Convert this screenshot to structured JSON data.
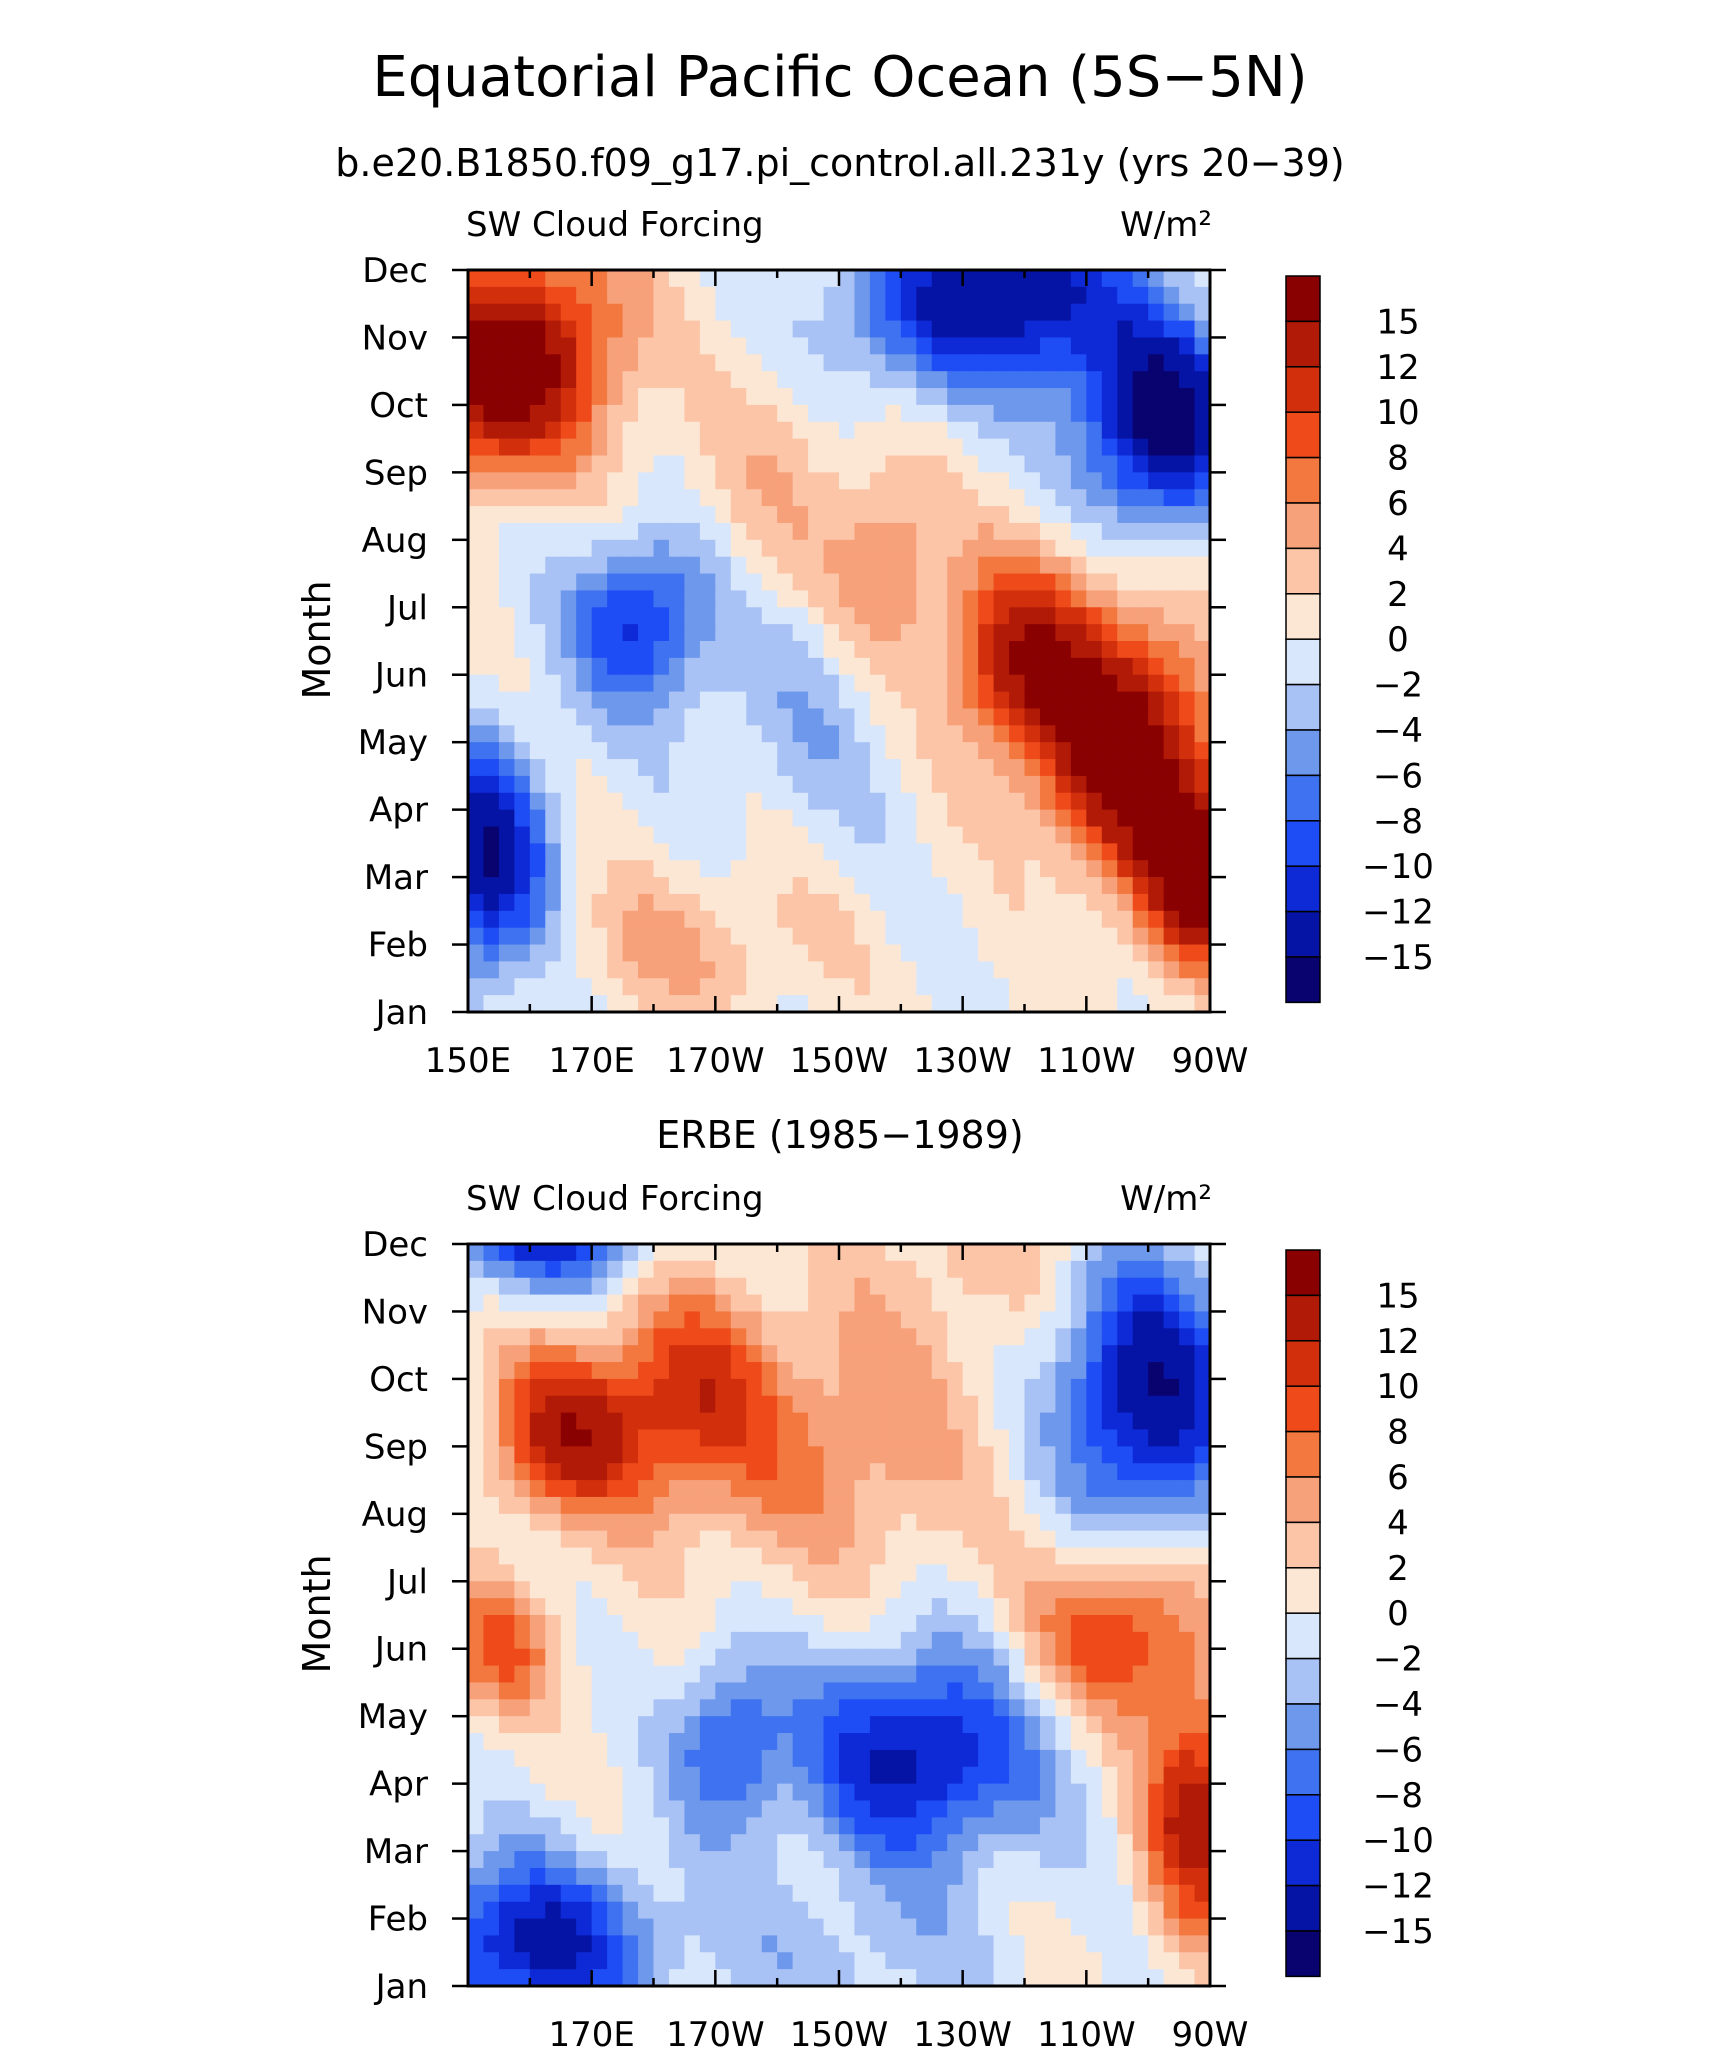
{
  "figure": {
    "title": "Equatorial Pacific Ocean (5S−5N)",
    "subtitle": "b.e20.B1850.f09_g17.pi_control.all.231y (yrs 20−39)"
  },
  "chart_data": [
    {
      "type": "heatmap",
      "panel_title": "",
      "left_label": "SW Cloud Forcing",
      "right_label": "W/m²",
      "ylabel": "Month",
      "xlabel": "",
      "x_tick_labels": [
        "150E",
        "170E",
        "170W",
        "150W",
        "130W",
        "110W",
        "90W"
      ],
      "y_tick_labels": [
        "Jan",
        "Feb",
        "Mar",
        "Apr",
        "May",
        "Jun",
        "Jul",
        "Aug",
        "Sep",
        "Oct",
        "Nov",
        "Dec"
      ],
      "x_range_deg_east": [
        150,
        270
      ],
      "colorbar_labels": [
        "15",
        "12",
        "10",
        "8",
        "6",
        "4",
        "2",
        "0",
        "−2",
        "−4",
        "−6",
        "−8",
        "−10",
        "−12",
        "−15"
      ],
      "features": [
        {
          "lon": 152,
          "month": 9.4,
          "value": 16,
          "spread_lon": 9,
          "spread_month": 1.0
        },
        {
          "lon": 166,
          "month": 10.0,
          "value": 9,
          "spread_lon": 9,
          "spread_month": 1.2
        },
        {
          "lon": 218,
          "month": 6.6,
          "value": 6,
          "spread_lon": 6,
          "spread_month": 1.0
        },
        {
          "lon": 240,
          "month": 5.2,
          "value": 14,
          "spread_lon": 9,
          "spread_month": 1.1
        },
        {
          "lon": 257,
          "month": 3.8,
          "value": 18,
          "spread_lon": 9,
          "spread_month": 1.3
        },
        {
          "lon": 268,
          "month": 2.0,
          "value": 15,
          "spread_lon": 6,
          "spread_month": 1.0
        },
        {
          "lon": 178,
          "month": 5.8,
          "value": -11,
          "spread_lon": 8,
          "spread_month": 0.9
        },
        {
          "lon": 153,
          "month": 2.2,
          "value": -15,
          "spread_lon": 7,
          "spread_month": 1.2
        },
        {
          "lon": 205,
          "month": 4.3,
          "value": -3,
          "spread_lon": 12,
          "spread_month": 1.2
        },
        {
          "lon": 222,
          "month": 10.4,
          "value": -9,
          "spread_lon": 10,
          "spread_month": 0.9
        },
        {
          "lon": 242,
          "month": 10.6,
          "value": -13,
          "spread_lon": 10,
          "spread_month": 0.9
        },
        {
          "lon": 262,
          "month": 8.8,
          "value": -17,
          "spread_lon": 9,
          "spread_month": 1.1
        },
        {
          "lon": 185,
          "month": 1.0,
          "value": 4,
          "spread_lon": 16,
          "spread_month": 0.8
        },
        {
          "lon": 200,
          "month": 7.8,
          "value": 3,
          "spread_lon": 12,
          "spread_month": 1.2
        }
      ]
    },
    {
      "type": "heatmap",
      "panel_title": "ERBE (1985−1989)",
      "left_label": "SW Cloud Forcing",
      "right_label": "W/m²",
      "ylabel": "Month",
      "xlabel": "",
      "x_tick_labels": [
        "170E",
        "170W",
        "150W",
        "130W",
        "110W",
        "90W"
      ],
      "y_tick_labels": [
        "Jan",
        "Feb",
        "Mar",
        "Apr",
        "May",
        "Jun",
        "Jul",
        "Aug",
        "Sep",
        "Oct",
        "Nov",
        "Dec"
      ],
      "x_range_deg_east": [
        150,
        270
      ],
      "colorbar_labels": [
        "15",
        "12",
        "10",
        "8",
        "6",
        "4",
        "2",
        "0",
        "−2",
        "−4",
        "−6",
        "−8",
        "−10",
        "−12",
        "−15"
      ],
      "features": [
        {
          "lon": 166,
          "month": 8.2,
          "value": 13,
          "spread_lon": 9,
          "spread_month": 0.9
        },
        {
          "lon": 186,
          "month": 8.8,
          "value": 9,
          "spread_lon": 9,
          "spread_month": 1.2
        },
        {
          "lon": 210,
          "month": 8.0,
          "value": 6,
          "spread_lon": 16,
          "spread_month": 1.4
        },
        {
          "lon": 155,
          "month": 5.0,
          "value": 8,
          "spread_lon": 7,
          "spread_month": 0.7
        },
        {
          "lon": 255,
          "month": 5.2,
          "value": 11,
          "spread_lon": 10,
          "spread_month": 0.9
        },
        {
          "lon": 268,
          "month": 2.5,
          "value": 14,
          "spread_lon": 6,
          "spread_month": 1.2
        },
        {
          "lon": 162,
          "month": 11.2,
          "value": -12,
          "spread_lon": 12,
          "spread_month": 0.6
        },
        {
          "lon": 260,
          "month": 8.8,
          "value": -15,
          "spread_lon": 10,
          "spread_month": 1.4
        },
        {
          "lon": 223,
          "month": 3.4,
          "value": -13,
          "spread_lon": 14,
          "spread_month": 1.1
        },
        {
          "lon": 192,
          "month": 3.6,
          "value": -8,
          "spread_lon": 6,
          "spread_month": 0.9
        },
        {
          "lon": 160,
          "month": 0.6,
          "value": -13,
          "spread_lon": 14,
          "spread_month": 0.9
        },
        {
          "lon": 212,
          "month": 0.5,
          "value": -3,
          "spread_lon": 16,
          "spread_month": 0.8
        },
        {
          "lon": 232,
          "month": 10.8,
          "value": 3,
          "spread_lon": 14,
          "spread_month": 0.9
        }
      ]
    }
  ],
  "colors": {
    "scale": [
      "#08036e",
      "#0614a6",
      "#0e2ad6",
      "#1f4df5",
      "#3e72f0",
      "#6e98ec",
      "#a9c2f5",
      "#d8e7fb",
      "#fce7d4",
      "#fcc5a8",
      "#f7a17a",
      "#f2783f",
      "#ef4a1a",
      "#d2300d",
      "#b21a08",
      "#8a0102"
    ],
    "thresholds": [
      -15,
      -12,
      -10,
      -8,
      -6,
      -4,
      -2,
      0,
      2,
      4,
      6,
      8,
      10,
      12,
      15
    ]
  }
}
